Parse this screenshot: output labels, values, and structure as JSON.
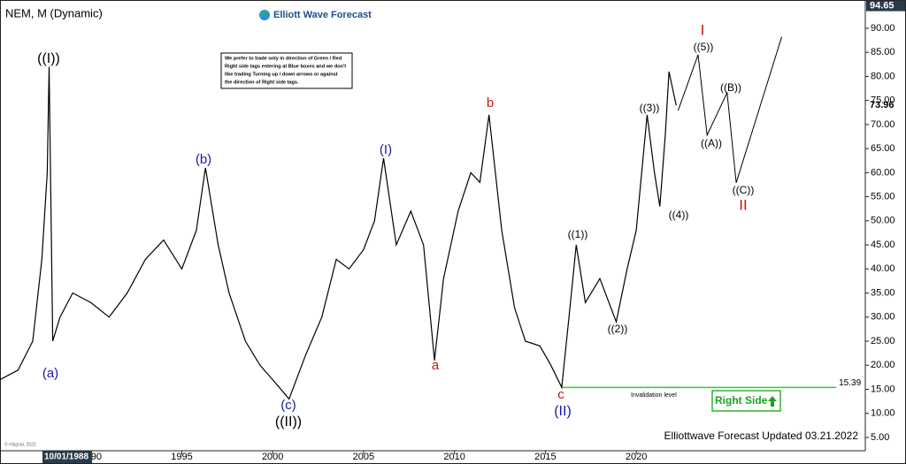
{
  "chart_data": {
    "type": "line",
    "title": "NEM, M (Dynamic)",
    "logo": "Elliott Wave Forecast",
    "note": [
      "We prefer to trade only in direction of Green / Red",
      "Right side tags entering at Blue boxes and we don't",
      "like trading Turning up / down arrows or against",
      "the direction of Right side tags."
    ],
    "footer": "Elliottwave Forecast Updated 03.21.2022",
    "copyright": "© eSignal, 2022",
    "first_date": "10/01/1988",
    "right_side": "Right Side",
    "x": [
      1985.0,
      1986.0,
      1986.8,
      1987.3,
      1987.6,
      1987.7,
      1987.9,
      1988.3,
      1989.0,
      1990.0,
      1991.0,
      1992.0,
      1993.0,
      1994.0,
      1995.0,
      1995.8,
      1996.3,
      1997.0,
      1997.6,
      1998.5,
      1999.3,
      2000.0,
      2000.9,
      2001.8,
      2002.7,
      2003.5,
      2004.2,
      2005.0,
      2005.6,
      2006.1,
      2006.8,
      2007.6,
      2008.3,
      2008.9,
      2009.4,
      2010.2,
      2010.9,
      2011.4,
      2011.9,
      2012.6,
      2013.3,
      2013.9,
      2014.7,
      2015.3,
      2015.9,
      2016.3,
      2016.7,
      2017.2,
      2018.0,
      2018.9,
      2019.5,
      2020.0,
      2020.6,
      2021.0,
      2021.3,
      2021.6,
      2021.8,
      2022.2
    ],
    "values": [
      17,
      19,
      25,
      42,
      60,
      82,
      25,
      30,
      35,
      33,
      30,
      35,
      42,
      46,
      40,
      48,
      61,
      45,
      35,
      25,
      20,
      17,
      13,
      22,
      30,
      42,
      40,
      44,
      50,
      63,
      45,
      52,
      45,
      21,
      38,
      52,
      60,
      58,
      72,
      48,
      32,
      25,
      24,
      20,
      15.4,
      30,
      45,
      33,
      38,
      29,
      40,
      48,
      72,
      60,
      53,
      68,
      81,
      73.96
    ],
    "projection": {
      "x": [
        2022.3,
        2023.4,
        2023.9,
        2025.0,
        2025.5,
        2028.0
      ],
      "values": [
        72.9,
        84.5,
        67.8,
        76.6,
        57.9,
        88.2
      ]
    },
    "invalidation": {
      "label": "Invalidation level",
      "value": 15.39,
      "x": [
        2015.9,
        2031.0
      ]
    },
    "last_price": 73.96,
    "top_price": 94.65,
    "wave_labels": [
      {
        "text": "((I))",
        "color": "#000000"
      },
      {
        "text": "(a)",
        "color": "#1a1aa6"
      },
      {
        "text": "(b)",
        "color": "#1a1aa6"
      },
      {
        "text": "(c)",
        "color": "#1a1aa6"
      },
      {
        "text": "((II))",
        "color": "#000000"
      },
      {
        "text": "(I)",
        "color": "#1a1aa6"
      },
      {
        "text": "a",
        "color": "#d01010"
      },
      {
        "text": "b",
        "color": "#d01010"
      },
      {
        "text": "c",
        "color": "#d01010"
      },
      {
        "text": "(II)",
        "color": "#1a1aa6"
      },
      {
        "text": "((1))",
        "color": "#000000"
      },
      {
        "text": "((2))",
        "color": "#000000"
      },
      {
        "text": "((3))",
        "color": "#000000"
      },
      {
        "text": "((4))",
        "color": "#000000"
      },
      {
        "text": "I",
        "color": "#d01010"
      },
      {
        "text": "((5))",
        "color": "#000000"
      },
      {
        "text": "((B))",
        "color": "#000000"
      },
      {
        "text": "((A))",
        "color": "#000000"
      },
      {
        "text": "((C))",
        "color": "#000000"
      },
      {
        "text": "II",
        "color": "#d01010"
      }
    ],
    "color": "#000000",
    "xlim": [
      1985.0,
      2032.6
    ],
    "ylim": [
      1.5,
      95.5
    ],
    "xticks": [
      1990,
      1995,
      2000,
      2005,
      2010,
      2015,
      2020
    ],
    "yticks": [
      {
        "value": 5,
        "label": "5.00"
      },
      {
        "value": 10,
        "label": "10.00"
      },
      {
        "value": 15,
        "label": "15.00"
      },
      {
        "value": 20,
        "label": "20.00"
      },
      {
        "value": 25,
        "label": "25.00"
      },
      {
        "value": 30,
        "label": "30.00"
      },
      {
        "value": 35,
        "label": "35.00"
      },
      {
        "value": 40,
        "label": "40.00"
      },
      {
        "value": 45,
        "label": "45.00"
      },
      {
        "value": 50,
        "label": "50.00"
      },
      {
        "value": 55,
        "label": "55.00"
      },
      {
        "value": 60,
        "label": "60.00"
      },
      {
        "value": 65,
        "label": "65.00"
      },
      {
        "value": 70,
        "label": "70.00"
      },
      {
        "value": 75,
        "label": "75.00"
      },
      {
        "value": 80,
        "label": "80.00"
      },
      {
        "value": 85,
        "label": "85.00"
      },
      {
        "value": 90,
        "label": "90.00"
      }
    ]
  }
}
